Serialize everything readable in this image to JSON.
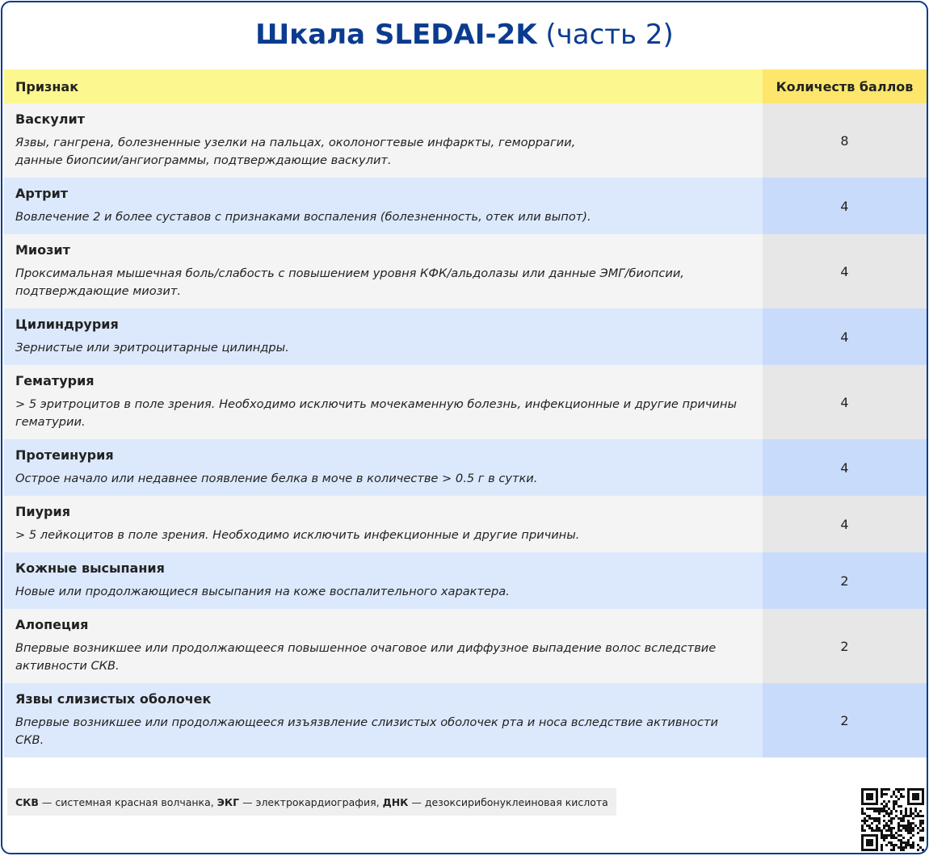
{
  "header": {
    "title": "Шкала SLEDAI-2K",
    "subtitle": "(часть 2)"
  },
  "table": {
    "columns": [
      "Признак",
      "Количеств баллов"
    ],
    "rows": [
      {
        "name": "Васкулит",
        "description": "Язвы, гангрена, болезненные узелки на пальцах, околоногтевые инфаркты, геморрагии,\nданные биопсии/ангиограммы, подтверждающие васкулит.",
        "score": 8
      },
      {
        "name": "Артрит",
        "description": "Вовлечение 2 и более суставов с признаками воспаления (болезненность, отек или выпот).",
        "score": 4
      },
      {
        "name": "Миозит",
        "description": "Проксимальная мышечная боль/слабость с повышением уровня КФК/альдолазы или данные ЭМГ/биопсии, подтверждающие миозит.",
        "score": 4
      },
      {
        "name": "Цилиндрурия",
        "description": "Зернистые или эритроцитарные цилиндры.",
        "score": 4
      },
      {
        "name": "Гематурия",
        "description": "> 5 эритроцитов в поле зрения. Необходимо исключить мочекаменную болезнь, инфекционные и другие причины гематурии.",
        "score": 4
      },
      {
        "name": "Протеинурия",
        "description": "Острое начало или недавнее появление белка в моче в количестве > 0.5 г в сутки.",
        "score": 4
      },
      {
        "name": "Пиурия",
        "description": "> 5 лейкоцитов в поле зрения. Необходимо исключить инфекционные и другие причины.",
        "score": 4
      },
      {
        "name": "Кожные высыпания",
        "description": "Новые или продолжающиеся высыпания на коже воспалительного характера.",
        "score": 2
      },
      {
        "name": "Алопеция",
        "description": "Впервые возникшее или продолжающееся повышенное очаговое или диффузное выпадение волос вследствие активности СКВ.",
        "score": 2
      },
      {
        "name": "Язвы слизистых оболочек",
        "description": "Впервые возникшее или продолжающееся изъязвление слизистых оболочек рта и носа вследствие активности СКВ.",
        "score": 2
      }
    ]
  },
  "footnote": [
    {
      "abbr": "СКВ",
      "definition": "— системная красная волчанка,"
    },
    {
      "abbr": "ЭКГ",
      "definition": "— электрокардиография,"
    },
    {
      "abbr": "ДНК",
      "definition": "— дезоксирибонуклеиновая кислота"
    }
  ]
}
